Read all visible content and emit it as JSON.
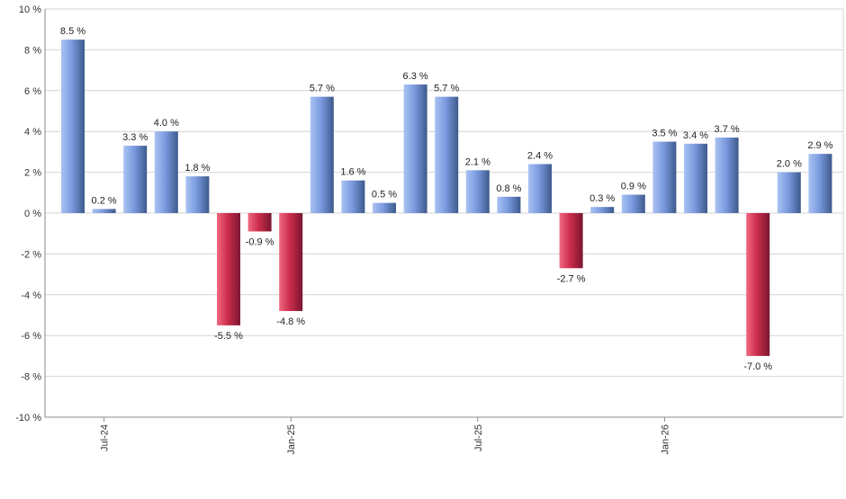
{
  "chart_data": {
    "type": "bar",
    "title": "",
    "xlabel": "",
    "ylabel": "",
    "ylim": [
      -10,
      10
    ],
    "y_ticks": [
      10,
      8,
      6,
      4,
      2,
      0,
      -2,
      -4,
      -6,
      -8,
      -10
    ],
    "y_tick_labels": [
      "10 %",
      "8 %",
      "6 %",
      "4 %",
      "2 %",
      "0 %",
      "-2 %",
      "-4 %",
      "-6 %",
      "-8 %",
      "-10 %"
    ],
    "categories": [
      "2024-06",
      "2024-07",
      "2024-08",
      "2024-09",
      "2024-10",
      "2024-11",
      "2024-12",
      "2025-01",
      "2025-02",
      "2025-03",
      "2025-04",
      "2025-05",
      "2025-06",
      "2025-07",
      "2025-08",
      "2025-09",
      "2025-10",
      "2025-11",
      "2025-12",
      "2026-01",
      "2026-02",
      "2026-03",
      "2026-04",
      "2026-05",
      "2026-06"
    ],
    "values": [
      8.5,
      0.2,
      3.3,
      4.0,
      1.8,
      -5.5,
      -0.9,
      -4.8,
      5.7,
      1.6,
      0.5,
      6.3,
      5.7,
      2.1,
      0.8,
      2.4,
      -2.7,
      0.3,
      0.9,
      3.5,
      3.4,
      3.7,
      -7.0,
      2.0,
      2.9
    ],
    "value_labels": [
      "8.5 %",
      "0.2 %",
      "3.3 %",
      "4.0 %",
      "1.8 %",
      "-5.5 %",
      "-0.9 %",
      "-4.8 %",
      "5.7 %",
      "1.6 %",
      "0.5 %",
      "6.3 %",
      "5.7 %",
      "2.1 %",
      "0.8 %",
      "2.4 %",
      "-2.7 %",
      "0.3 %",
      "0.9 %",
      "3.5 %",
      "3.4 %",
      "3.7 %",
      "-7.0 %",
      "2.0 %",
      "2.9 %"
    ],
    "x_tick_labels": [
      {
        "category": "2024-07",
        "label": "Jul-24"
      },
      {
        "category": "2025-01",
        "label": "Jan-25"
      },
      {
        "category": "2025-07",
        "label": "Jul-25"
      },
      {
        "category": "2026-01",
        "label": "Jan-26"
      }
    ],
    "grid": true,
    "legend": "none"
  },
  "colors": {
    "positive_light": "#a9c3f2",
    "positive_mid": "#7b9be0",
    "positive_dark": "#3d5a8c",
    "negative_light": "#f06a82",
    "negative_mid": "#cc2d4c",
    "negative_dark": "#7a1630"
  }
}
